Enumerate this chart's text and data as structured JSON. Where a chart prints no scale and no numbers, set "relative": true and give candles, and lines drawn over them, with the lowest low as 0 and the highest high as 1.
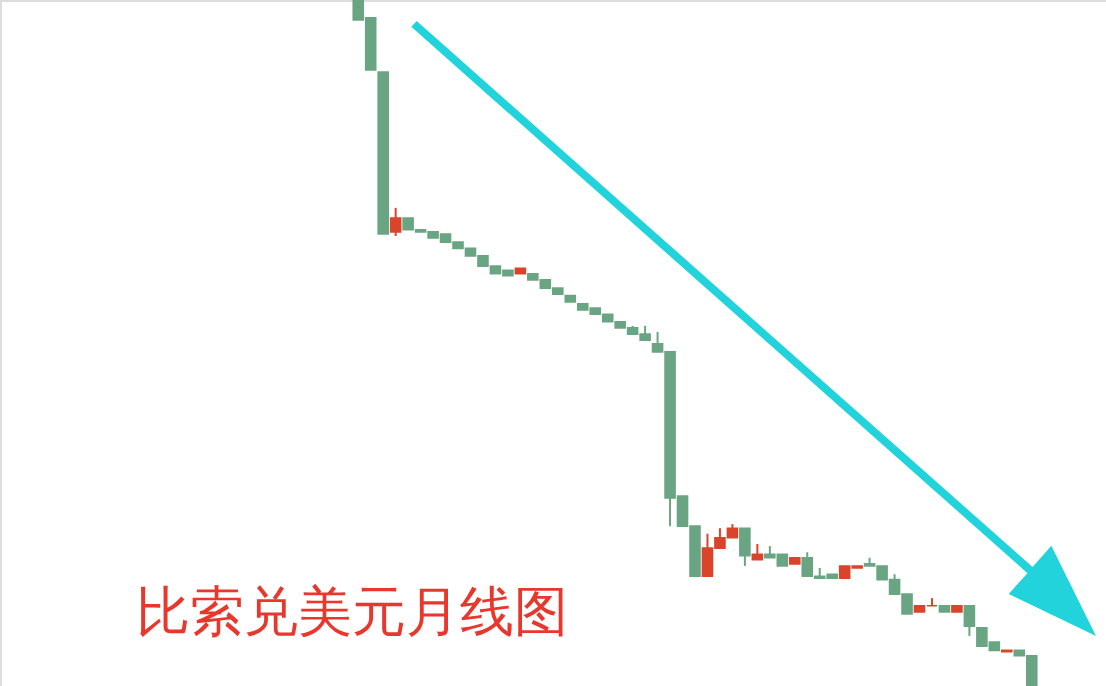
{
  "chart_data": {
    "type": "candlestick",
    "title": "比索兑美元月线图",
    "relative": true,
    "categories": [
      null,
      null,
      null,
      null,
      null,
      null,
      null,
      null,
      null,
      null,
      null,
      null,
      null,
      null,
      null,
      null,
      null,
      null,
      null,
      null,
      null,
      null,
      null,
      null,
      null,
      null,
      null,
      null,
      null,
      null,
      null,
      null,
      null,
      null,
      null,
      null,
      null,
      null,
      null,
      null,
      null,
      null,
      null,
      null,
      null,
      null,
      null,
      null,
      null,
      null,
      null,
      null,
      null,
      null,
      null
    ],
    "ohlc": [
      [
        1,
        1,
        0.971,
        0.971
      ],
      [
        0.974,
        0.974,
        0.898,
        0.898
      ],
      [
        0.895,
        0.895,
        0.659,
        0.659
      ],
      [
        0.662,
        0.697,
        0.656,
        0.682
      ],
      [
        0.682,
        0.682,
        0.665,
        0.665
      ],
      [
        0.665,
        0.665,
        0.662,
        0.662
      ],
      [
        0.662,
        0.662,
        0.653,
        0.653
      ],
      [
        0.659,
        0.659,
        0.647,
        0.647
      ],
      [
        0.647,
        0.647,
        0.638,
        0.638
      ],
      [
        0.638,
        0.638,
        0.627,
        0.627
      ],
      [
        0.627,
        0.627,
        0.612,
        0.612
      ],
      [
        0.612,
        0.612,
        0.601,
        0.601
      ],
      [
        0.606,
        0.606,
        0.598,
        0.598
      ],
      [
        0.601,
        0.609,
        0.601,
        0.609
      ],
      [
        0.601,
        0.601,
        0.592,
        0.592
      ],
      [
        0.592,
        0.592,
        0.58,
        0.58
      ],
      [
        0.58,
        0.58,
        0.571,
        0.571
      ],
      [
        0.569,
        0.569,
        0.56,
        0.56
      ],
      [
        0.557,
        0.557,
        0.548,
        0.548
      ],
      [
        0.551,
        0.551,
        0.542,
        0.542
      ],
      [
        0.542,
        0.542,
        0.531,
        0.531
      ],
      [
        0.531,
        0.531,
        0.522,
        0.522
      ],
      [
        0.522,
        0.525,
        0.513,
        0.513
      ],
      [
        0.513,
        0.525,
        0.504,
        0.504
      ],
      [
        0.499,
        0.516,
        0.487,
        0.487
      ],
      [
        0.487,
        0.487,
        0.233,
        0.274
      ],
      [
        0.277,
        0.277,
        0.233,
        0.233
      ],
      [
        0.233,
        0.233,
        0.16,
        0.16
      ],
      [
        0.16,
        0.222,
        0.16,
        0.201
      ],
      [
        0.201,
        0.23,
        0.201,
        0.216
      ],
      [
        0.216,
        0.236,
        0.216,
        0.23
      ],
      [
        0.23,
        0.23,
        0.175,
        0.19
      ],
      [
        0.184,
        0.207,
        0.184,
        0.192
      ],
      [
        0.192,
        0.204,
        0.187,
        0.187
      ],
      [
        0.192,
        0.192,
        0.175,
        0.175
      ],
      [
        0.178,
        0.187,
        0.178,
        0.187
      ],
      [
        0.187,
        0.195,
        0.16,
        0.16
      ],
      [
        0.16,
        0.172,
        0.157,
        0.157
      ],
      [
        0.163,
        0.163,
        0.157,
        0.157
      ],
      [
        0.157,
        0.175,
        0.157,
        0.175
      ],
      [
        0.172,
        0.175,
        0.172,
        0.175
      ],
      [
        0.178,
        0.187,
        0.175,
        0.175
      ],
      [
        0.175,
        0.175,
        0.155,
        0.155
      ],
      [
        0.155,
        0.163,
        0.134,
        0.134
      ],
      [
        0.134,
        0.134,
        0.105,
        0.105
      ],
      [
        0.108,
        0.117,
        0.108,
        0.117
      ],
      [
        0.117,
        0.128,
        0.117,
        0.117
      ],
      [
        0.117,
        0.117,
        0.108,
        0.108
      ],
      [
        0.108,
        0.117,
        0.108,
        0.117
      ],
      [
        0.117,
        0.117,
        0.073,
        0.087
      ],
      [
        0.085,
        0.085,
        0.058,
        0.058
      ],
      [
        0.064,
        0.064,
        0.052,
        0.052
      ],
      [
        0.05,
        0.052,
        0.05,
        0.052
      ],
      [
        0.052,
        0.052,
        0.044,
        0.044
      ],
      [
        0.044,
        0.044,
        0,
        0
      ]
    ],
    "colors": [
      "#6aa583",
      "#6aa583",
      "#6aa583",
      "#d9442b",
      "#6aa583",
      "#6aa583",
      "#6aa583",
      "#6aa583",
      "#6aa583",
      "#6aa583",
      "#6aa583",
      "#6aa583",
      "#6aa583",
      "#d9442b",
      "#6aa583",
      "#6aa583",
      "#6aa583",
      "#6aa583",
      "#6aa583",
      "#6aa583",
      "#6aa583",
      "#6aa583",
      "#6aa583",
      "#6aa583",
      "#6aa583",
      "#6aa583",
      "#6aa583",
      "#6aa583",
      "#d9442b",
      "#d9442b",
      "#d9442b",
      "#6aa583",
      "#d9442b",
      "#6aa583",
      "#6aa583",
      "#d9442b",
      "#6aa583",
      "#6aa583",
      "#6aa583",
      "#d9442b",
      "#d9442b",
      "#6aa583",
      "#6aa583",
      "#6aa583",
      "#6aa583",
      "#d9442b",
      "#d9442b",
      "#6aa583",
      "#d9442b",
      "#6aa583",
      "#6aa583",
      "#6aa583",
      "#d9442b",
      "#6aa583",
      "#6aa583"
    ]
  }
}
